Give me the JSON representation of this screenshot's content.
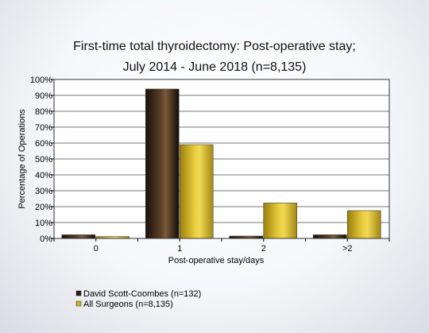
{
  "chart_data": {
    "type": "bar",
    "title": "First-time total thyroidectomy: Post-operative stay;",
    "subtitle": "July 2014 - June 2018 (n=8,135)",
    "xlabel": "Post-operative stay/days",
    "ylabel": "Percentage of Operations",
    "categories": [
      "0",
      "1",
      "2",
      ">2"
    ],
    "ylim": [
      0,
      100
    ],
    "yticks": [
      "0%",
      "10%",
      "20%",
      "30%",
      "40%",
      "50%",
      "60%",
      "70%",
      "80%",
      "90%",
      "100%"
    ],
    "grid": true,
    "legend_position": "bottom-left",
    "series": [
      {
        "name": "David Scott-Coombes (n=132)",
        "values": [
          2.3,
          94.0,
          1.5,
          2.3
        ],
        "color": "#2b1d12"
      },
      {
        "name": "All Surgeons (n=8,135)",
        "values": [
          1.2,
          59.0,
          22.3,
          17.5
        ],
        "color": "#d4b21c"
      }
    ]
  }
}
